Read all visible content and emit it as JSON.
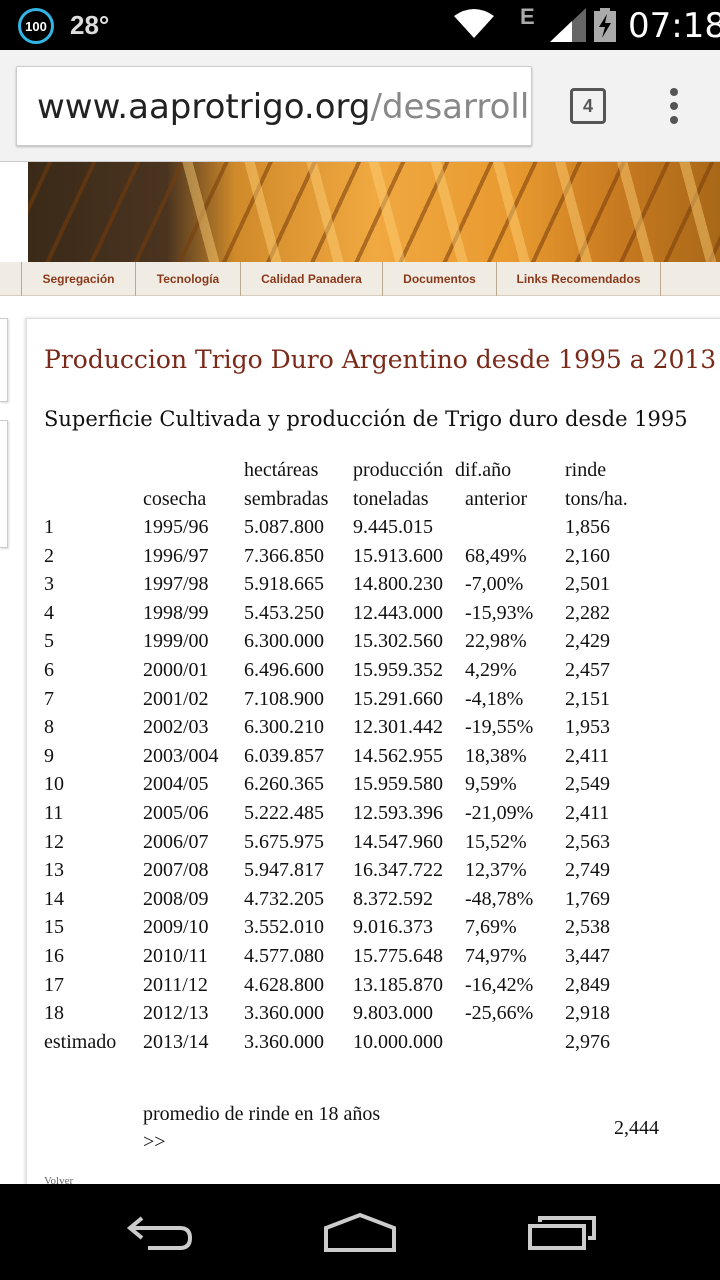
{
  "status_bar": {
    "battery_level": "100",
    "temperature": "28°",
    "network_type": "E",
    "time": "07:18",
    "icons": [
      "battery-circle-icon",
      "wifi-icon",
      "signal-icon",
      "battery-charging-icon"
    ]
  },
  "browser": {
    "url_domain": "www.aaprotrigo.org",
    "url_path": "/desarrollo.",
    "tab_count": "4",
    "menu_icon": "overflow-menu-icon"
  },
  "nav": {
    "items": [
      {
        "label": "Segregación"
      },
      {
        "label": "Tecnología"
      },
      {
        "label": "Calidad Panadera"
      },
      {
        "label": "Documentos"
      },
      {
        "label": "Links Recomendados"
      }
    ]
  },
  "content": {
    "title": "Produccion Trigo Duro Argentino desde 1995 a 2013",
    "subtitle": "Superficie Cultivada y producción de Trigo duro desde 1995",
    "table": {
      "headers": {
        "cosecha": "cosecha",
        "hectareas_1": "hectáreas",
        "hectareas_2": "sembradas",
        "produccion_1": "producción",
        "produccion_2": "toneladas",
        "dif_1": "dif.año",
        "dif_2": "anterior",
        "rinde_1": "rinde",
        "rinde_2": "tons/ha."
      },
      "rows": [
        {
          "n": "1",
          "cosecha": "1995/96",
          "hectareas": "5.087.800",
          "produccion": "9.445.015",
          "dif": "",
          "rinde": "1,856"
        },
        {
          "n": "2",
          "cosecha": "1996/97",
          "hectareas": "7.366.850",
          "produccion": "15.913.600",
          "dif": "68,49%",
          "rinde": "2,160"
        },
        {
          "n": "3",
          "cosecha": "1997/98",
          "hectareas": "5.918.665",
          "produccion": "14.800.230",
          "dif": "-7,00%",
          "rinde": "2,501"
        },
        {
          "n": "4",
          "cosecha": "1998/99",
          "hectareas": "5.453.250",
          "produccion": "12.443.000",
          "dif": "-15,93%",
          "rinde": "2,282"
        },
        {
          "n": "5",
          "cosecha": "1999/00",
          "hectareas": "6.300.000",
          "produccion": "15.302.560",
          "dif": "22,98%",
          "rinde": "2,429"
        },
        {
          "n": "6",
          "cosecha": "2000/01",
          "hectareas": "6.496.600",
          "produccion": "15.959.352",
          "dif": "4,29%",
          "rinde": "2,457"
        },
        {
          "n": "7",
          "cosecha": "2001/02",
          "hectareas": "7.108.900",
          "produccion": "15.291.660",
          "dif": "-4,18%",
          "rinde": "2,151"
        },
        {
          "n": "8",
          "cosecha": "2002/03",
          "hectareas": "6.300.210",
          "produccion": "12.301.442",
          "dif": "-19,55%",
          "rinde": "1,953"
        },
        {
          "n": "9",
          "cosecha": "2003/004",
          "hectareas": "6.039.857",
          "produccion": "14.562.955",
          "dif": "18,38%",
          "rinde": "2,411"
        },
        {
          "n": "10",
          "cosecha": "2004/05",
          "hectareas": "6.260.365",
          "produccion": "15.959.580",
          "dif": "9,59%",
          "rinde": "2,549"
        },
        {
          "n": "11",
          "cosecha": "2005/06",
          "hectareas": "5.222.485",
          "produccion": "12.593.396",
          "dif": "-21,09%",
          "rinde": "2,411"
        },
        {
          "n": "12",
          "cosecha": "2006/07",
          "hectareas": "5.675.975",
          "produccion": "14.547.960",
          "dif": "15,52%",
          "rinde": "2,563"
        },
        {
          "n": "13",
          "cosecha": "2007/08",
          "hectareas": "5.947.817",
          "produccion": "16.347.722",
          "dif": "12,37%",
          "rinde": "2,749"
        },
        {
          "n": "14",
          "cosecha": "2008/09",
          "hectareas": "4.732.205",
          "produccion": "8.372.592",
          "dif": "-48,78%",
          "rinde": "1,769"
        },
        {
          "n": "15",
          "cosecha": "2009/10",
          "hectareas": "3.552.010",
          "produccion": "9.016.373",
          "dif": "7,69%",
          "rinde": "2,538"
        },
        {
          "n": "16",
          "cosecha": "2010/11",
          "hectareas": "4.577.080",
          "produccion": "15.775.648",
          "dif": "74,97%",
          "rinde": "3,447"
        },
        {
          "n": "17",
          "cosecha": "2011/12",
          "hectareas": "4.628.800",
          "produccion": "13.185.870",
          "dif": "-16,42%",
          "rinde": "2,849"
        },
        {
          "n": "18",
          "cosecha": "2012/13",
          "hectareas": "3.360.000",
          "produccion": "9.803.000",
          "dif": "-25,66%",
          "rinde": "2,918"
        },
        {
          "n": "estimado",
          "cosecha": "2013/14",
          "hectareas": "3.360.000",
          "produccion": "10.000.000",
          "dif": "",
          "rinde": "2,976"
        }
      ]
    },
    "promedio_label": "promedio de rinde en 18 años",
    "promedio_arrow": ">>",
    "promedio_value": "2,444",
    "volver": "Volver"
  },
  "navbar": {
    "icons": [
      "back-icon",
      "home-icon",
      "recent-apps-icon"
    ]
  }
}
